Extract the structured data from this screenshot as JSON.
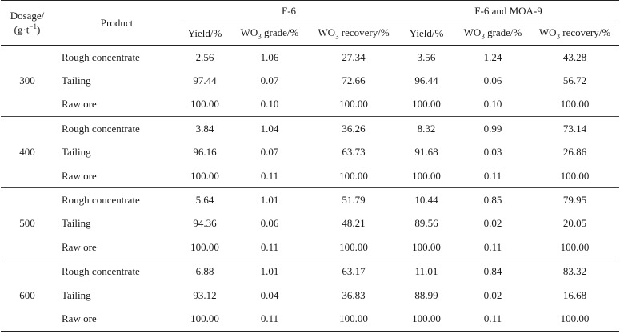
{
  "header": {
    "dosage_label_line1": "Dosage/",
    "dosage_label_line2": "(g·t",
    "dosage_label_exp": "−1",
    "dosage_label_close": ")",
    "product_label": "Product",
    "group1": "F-6",
    "group2": "F-6 and MOA-9",
    "yield_label": "Yield/%",
    "grade_prefix": "WO",
    "grade_sub": "3",
    "grade_suffix": " grade/%",
    "recovery_prefix": "WO",
    "recovery_sub": "3",
    "recovery_suffix": " recovery/%"
  },
  "groups": [
    {
      "dosage": "300",
      "rows": [
        {
          "product": "Rough concentrate",
          "f6": [
            "2.56",
            "1.06",
            "27.34"
          ],
          "f6moa": [
            "3.56",
            "1.24",
            "43.28"
          ]
        },
        {
          "product": "Tailing",
          "f6": [
            "97.44",
            "0.07",
            "72.66"
          ],
          "f6moa": [
            "96.44",
            "0.06",
            "56.72"
          ]
        },
        {
          "product": "Raw ore",
          "f6": [
            "100.00",
            "0.10",
            "100.00"
          ],
          "f6moa": [
            "100.00",
            "0.10",
            "100.00"
          ]
        }
      ]
    },
    {
      "dosage": "400",
      "rows": [
        {
          "product": "Rough concentrate",
          "f6": [
            "3.84",
            "1.04",
            "36.26"
          ],
          "f6moa": [
            "8.32",
            "0.99",
            "73.14"
          ]
        },
        {
          "product": "Tailing",
          "f6": [
            "96.16",
            "0.07",
            "63.73"
          ],
          "f6moa": [
            "91.68",
            "0.03",
            "26.86"
          ]
        },
        {
          "product": "Raw ore",
          "f6": [
            "100.00",
            "0.11",
            "100.00"
          ],
          "f6moa": [
            "100.00",
            "0.11",
            "100.00"
          ]
        }
      ]
    },
    {
      "dosage": "500",
      "rows": [
        {
          "product": "Rough concentrate",
          "f6": [
            "5.64",
            "1.01",
            "51.79"
          ],
          "f6moa": [
            "10.44",
            "0.85",
            "79.95"
          ]
        },
        {
          "product": "Tailing",
          "f6": [
            "94.36",
            "0.06",
            "48.21"
          ],
          "f6moa": [
            "89.56",
            "0.02",
            "20.05"
          ]
        },
        {
          "product": "Raw ore",
          "f6": [
            "100.00",
            "0.11",
            "100.00"
          ],
          "f6moa": [
            "100.00",
            "0.11",
            "100.00"
          ]
        }
      ]
    },
    {
      "dosage": "600",
      "rows": [
        {
          "product": "Rough concentrate",
          "f6": [
            "6.88",
            "1.01",
            "63.17"
          ],
          "f6moa": [
            "11.01",
            "0.84",
            "83.32"
          ]
        },
        {
          "product": "Tailing",
          "f6": [
            "93.12",
            "0.04",
            "36.83"
          ],
          "f6moa": [
            "88.99",
            "0.02",
            "16.68"
          ]
        },
        {
          "product": "Raw ore",
          "f6": [
            "100.00",
            "0.11",
            "100.00"
          ],
          "f6moa": [
            "100.00",
            "0.11",
            "100.00"
          ]
        }
      ]
    }
  ]
}
